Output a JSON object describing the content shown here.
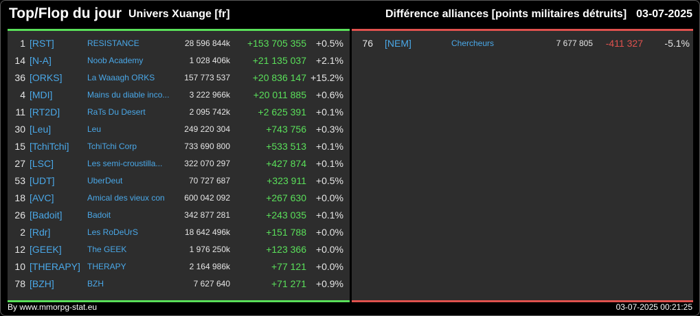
{
  "header": {
    "title": "Top/Flop du jour",
    "universe": "Univers Xuange [fr]",
    "subject": "Différence alliances [points militaires détruits]",
    "date": "03-07-2025"
  },
  "colors": {
    "positive": "#5ae05a",
    "negative": "#e0524e",
    "link": "#4aa8e8",
    "panel": "#2d2d2d"
  },
  "top": [
    {
      "rank": "1",
      "tag": "[RST]",
      "name": "RESISTANCE",
      "total": "28 596 844k",
      "diff": "+153 705 355",
      "pct": "+0.5%"
    },
    {
      "rank": "14",
      "tag": "[N-A]",
      "name": "Noob Academy",
      "total": "1 028 406k",
      "diff": "+21 135 037",
      "pct": "+2.1%"
    },
    {
      "rank": "36",
      "tag": "[ORKS]",
      "name": "La Waaagh ORKS",
      "total": "157 773 537",
      "diff": "+20 836 147",
      "pct": "+15.2%"
    },
    {
      "rank": "4",
      "tag": "[MDI]",
      "name": "Mains du diable inco...",
      "total": "3 222 966k",
      "diff": "+20 011 885",
      "pct": "+0.6%"
    },
    {
      "rank": "11",
      "tag": "[RT2D]",
      "name": "RaTs Du Desert",
      "total": "2 095 742k",
      "diff": "+2 625 391",
      "pct": "+0.1%"
    },
    {
      "rank": "30",
      "tag": "[Leu]",
      "name": "Leu",
      "total": "249 220 304",
      "diff": "+743 756",
      "pct": "+0.3%"
    },
    {
      "rank": "15",
      "tag": "[TchiTchi]",
      "name": "TchiTchi Corp",
      "total": "733 690 800",
      "diff": "+533 513",
      "pct": "+0.1%"
    },
    {
      "rank": "27",
      "tag": "[LSC]",
      "name": "Les semi-croustilla...",
      "total": "322 070 297",
      "diff": "+427 874",
      "pct": "+0.1%"
    },
    {
      "rank": "53",
      "tag": "[UDT]",
      "name": "UberDeut",
      "total": "70 727 687",
      "diff": "+323 911",
      "pct": "+0.5%"
    },
    {
      "rank": "18",
      "tag": "[AVC]",
      "name": "Amical des vieux con",
      "total": "600 042 092",
      "diff": "+267 630",
      "pct": "+0.0%"
    },
    {
      "rank": "26",
      "tag": "[Badoit]",
      "name": "Badoit",
      "total": "342 877 281",
      "diff": "+243 035",
      "pct": "+0.1%"
    },
    {
      "rank": "2",
      "tag": "[Rdr]",
      "name": "Les RoDeUrS",
      "total": "18 642 496k",
      "diff": "+151 788",
      "pct": "+0.0%"
    },
    {
      "rank": "12",
      "tag": "[GEEK]",
      "name": "The GEEK",
      "total": "1 976 250k",
      "diff": "+123 366",
      "pct": "+0.0%"
    },
    {
      "rank": "10",
      "tag": "[THERAPY]",
      "name": "THERAPY",
      "total": "2 164 986k",
      "diff": "+77 121",
      "pct": "+0.0%"
    },
    {
      "rank": "78",
      "tag": "[BZH]",
      "name": "BZH",
      "total": "7 627 640",
      "diff": "+71 271",
      "pct": "+0.9%"
    }
  ],
  "flop": [
    {
      "rank": "76",
      "tag": "[NEM]",
      "name": "Chercheurs",
      "total": "7 677 805",
      "diff": "-411 327",
      "pct": "-5.1%"
    }
  ],
  "footer": {
    "credit": "By www.mmorpg-stat.eu",
    "timestamp": "03-07-2025 00:21:25"
  }
}
